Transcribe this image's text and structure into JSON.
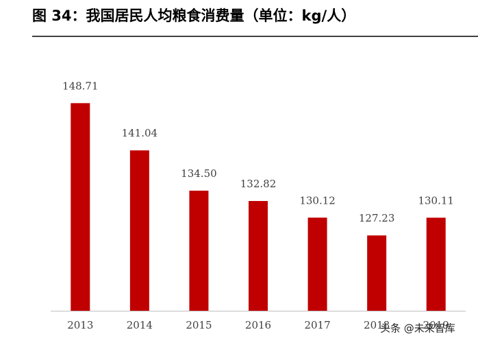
{
  "chart_data": {
    "type": "bar",
    "title": "图 34：我国居民人均粮食消费量（单位：kg/人）",
    "categories": [
      "2013",
      "2014",
      "2015",
      "2016",
      "2017",
      "2018",
      "2019"
    ],
    "values": [
      148.71,
      141.04,
      134.5,
      132.82,
      130.12,
      127.23,
      130.11
    ],
    "value_labels": [
      "148.71",
      "141.04",
      "134.50",
      "132.82",
      "130.12",
      "127.23",
      "130.11"
    ],
    "color": "#c00000",
    "ylim": [
      115,
      160
    ],
    "watermark": "头条 @未来智库"
  }
}
